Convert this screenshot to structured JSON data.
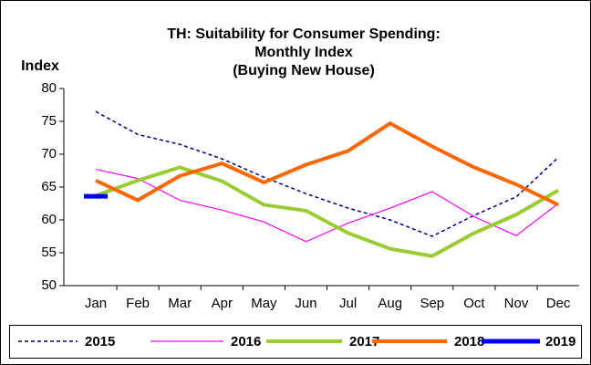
{
  "chart_data": {
    "type": "line",
    "title": [
      "TH: Suitability for Consumer Spending:",
      "Monthly Index",
      "(Buying New House)"
    ],
    "ylabel": "Index",
    "categories": [
      "Jan",
      "Feb",
      "Mar",
      "Apr",
      "May",
      "Jun",
      "Jul",
      "Aug",
      "Sep",
      "Oct",
      "Nov",
      "Dec"
    ],
    "ylim": [
      50,
      80
    ],
    "yticks": [
      50,
      55,
      60,
      65,
      70,
      75,
      80
    ],
    "grid": false,
    "legend": "bottom",
    "series": [
      {
        "name": "2015",
        "color": "#000080",
        "dashed": true,
        "width": 1.5,
        "values": [
          76.5,
          73,
          71.5,
          69.3,
          66.5,
          64,
          61.8,
          60,
          57.5,
          60.7,
          63.5,
          69.5
        ]
      },
      {
        "name": "2016",
        "color": "#ff00ff",
        "width": 1.2,
        "values": [
          67.7,
          66.3,
          63,
          61.5,
          59.7,
          56.7,
          59.5,
          61.8,
          64.3,
          60.5,
          57.6,
          62.5
        ]
      },
      {
        "name": "2017",
        "color": "#99cc33",
        "width": 4,
        "values": [
          63.7,
          66,
          68,
          65.9,
          62.3,
          61.4,
          58,
          55.6,
          54.5,
          58,
          60.8,
          64.5
        ]
      },
      {
        "name": "2018",
        "color": "#ff6600",
        "width": 4,
        "values": [
          66,
          63,
          66.7,
          68.6,
          65.7,
          68.4,
          70.5,
          74.7,
          71.2,
          68,
          65.4,
          62.3
        ]
      },
      {
        "name": "2019",
        "color": "#0000ff",
        "width": 5,
        "values": [
          63.6,
          null,
          null,
          null,
          null,
          null,
          null,
          null,
          null,
          null,
          null,
          null
        ]
      }
    ]
  }
}
